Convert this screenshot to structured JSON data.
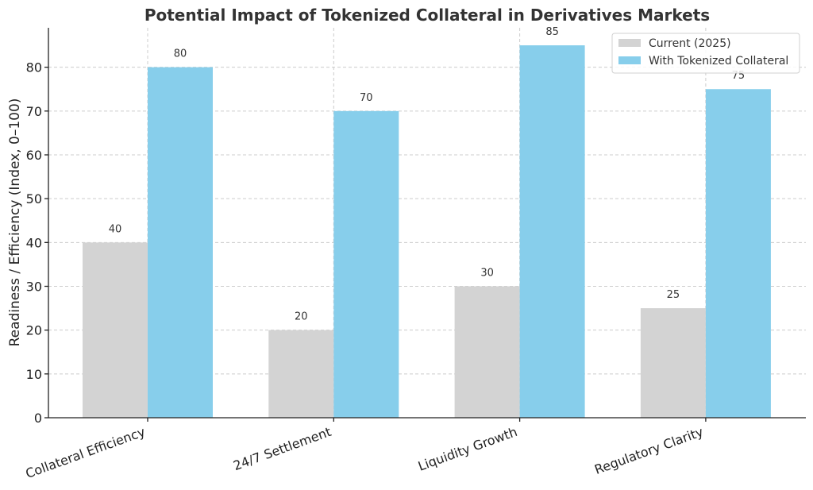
{
  "chart_data": {
    "type": "bar",
    "title": "Potential Impact of Tokenized Collateral in Derivatives Markets",
    "xlabel": "",
    "ylabel": "Readiness / Efficiency (Index, 0–100)",
    "categories": [
      "Collateral Efficiency",
      "24/7 Settlement",
      "Liquidity Growth",
      "Regulatory Clarity"
    ],
    "series": [
      {
        "name": "Current (2025)",
        "values": [
          40,
          20,
          30,
          25
        ],
        "color": "#d3d3d3"
      },
      {
        "name": "With Tokenized Collateral",
        "values": [
          80,
          70,
          85,
          75
        ],
        "color": "#87ceeb"
      }
    ],
    "ylim": [
      0,
      89
    ],
    "yticks": [
      0,
      10,
      20,
      30,
      40,
      50,
      60,
      70,
      80
    ],
    "grid": true,
    "legend_position": "top-right"
  }
}
